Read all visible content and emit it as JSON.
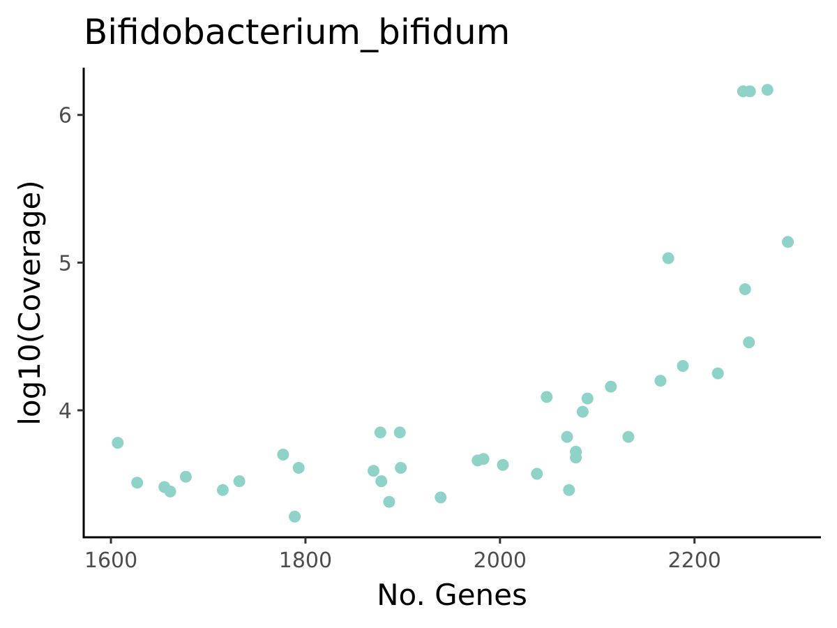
{
  "chart_data": {
    "type": "scatter",
    "title": "Bifidobacterium_bifidum",
    "xlabel": "No. Genes",
    "ylabel": "log10(Coverage)",
    "xlim": [
      1572,
      2330
    ],
    "ylim": [
      3.14,
      6.32
    ],
    "x_ticks": [
      1600,
      1800,
      2000,
      2200
    ],
    "y_ticks": [
      4,
      5,
      6
    ],
    "grid": false,
    "legend": "none",
    "point_color": "#8fd3c8",
    "points": [
      {
        "x": 1607,
        "y": 3.78
      },
      {
        "x": 1627,
        "y": 3.51
      },
      {
        "x": 1655,
        "y": 3.48
      },
      {
        "x": 1661,
        "y": 3.45
      },
      {
        "x": 1677,
        "y": 3.55
      },
      {
        "x": 1715,
        "y": 3.46
      },
      {
        "x": 1732,
        "y": 3.52
      },
      {
        "x": 1777,
        "y": 3.7
      },
      {
        "x": 1789,
        "y": 3.28
      },
      {
        "x": 1793,
        "y": 3.61
      },
      {
        "x": 1870,
        "y": 3.59
      },
      {
        "x": 1877,
        "y": 3.85
      },
      {
        "x": 1878,
        "y": 3.52
      },
      {
        "x": 1886,
        "y": 3.38
      },
      {
        "x": 1897,
        "y": 3.85
      },
      {
        "x": 1898,
        "y": 3.61
      },
      {
        "x": 1939,
        "y": 3.41
      },
      {
        "x": 1977,
        "y": 3.66
      },
      {
        "x": 1983,
        "y": 3.67
      },
      {
        "x": 2003,
        "y": 3.63
      },
      {
        "x": 2038,
        "y": 3.57
      },
      {
        "x": 2048,
        "y": 4.09
      },
      {
        "x": 2069,
        "y": 3.82
      },
      {
        "x": 2071,
        "y": 3.46
      },
      {
        "x": 2078,
        "y": 3.72
      },
      {
        "x": 2078,
        "y": 3.68
      },
      {
        "x": 2085,
        "y": 3.99
      },
      {
        "x": 2090,
        "y": 4.08
      },
      {
        "x": 2114,
        "y": 4.16
      },
      {
        "x": 2132,
        "y": 3.82
      },
      {
        "x": 2165,
        "y": 4.2
      },
      {
        "x": 2173,
        "y": 5.03
      },
      {
        "x": 2188,
        "y": 4.3
      },
      {
        "x": 2224,
        "y": 4.25
      },
      {
        "x": 2250,
        "y": 6.16
      },
      {
        "x": 2252,
        "y": 4.82
      },
      {
        "x": 2256,
        "y": 4.46
      },
      {
        "x": 2257,
        "y": 6.16
      },
      {
        "x": 2275,
        "y": 6.17
      },
      {
        "x": 2296,
        "y": 5.14
      }
    ]
  }
}
